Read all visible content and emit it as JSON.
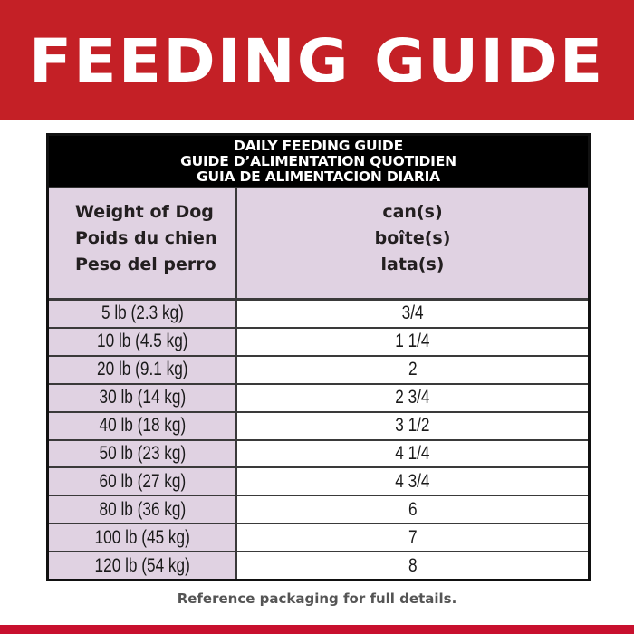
{
  "banner": {
    "title": "FEEDING GUIDE",
    "background_color": "#c42026"
  },
  "table": {
    "title_lines": [
      "DAILY FEEDING GUIDE",
      "GUIDE D’ALIMENTATION QUOTIDIEN",
      "GUIA DE ALIMENTACION DIARIA"
    ],
    "header": {
      "weight": [
        "Weight of Dog",
        "Poids du chien",
        "Peso del perro"
      ],
      "cans": [
        "can(s)",
        "boîte(s)",
        "lata(s)"
      ]
    },
    "rows": [
      {
        "weight": "5 lb (2.3 kg)",
        "cans": "3/4"
      },
      {
        "weight": "10 lb (4.5 kg)",
        "cans": "1 1/4"
      },
      {
        "weight": "20 lb (9.1 kg)",
        "cans": "2"
      },
      {
        "weight": "30 lb (14 kg)",
        "cans": "2 3/4"
      },
      {
        "weight": "40 lb (18 kg)",
        "cans": "3 1/2"
      },
      {
        "weight": "50 lb (23 kg)",
        "cans": "4 1/4"
      },
      {
        "weight": "60 lb (27 kg)",
        "cans": "4 3/4"
      },
      {
        "weight": "80 lb (36 kg)",
        "cans": "6"
      },
      {
        "weight": "100 lb (45 kg)",
        "cans": "7"
      },
      {
        "weight": "120 lb (54 kg)",
        "cans": "8"
      }
    ],
    "colors": {
      "title_bg": "#000000",
      "weight_column_bg": "#e0d2e2",
      "cans_column_bg": "#ffffff"
    }
  },
  "footer": {
    "note": "Reference packaging for full details.",
    "stripe_color": "#c8102e"
  }
}
